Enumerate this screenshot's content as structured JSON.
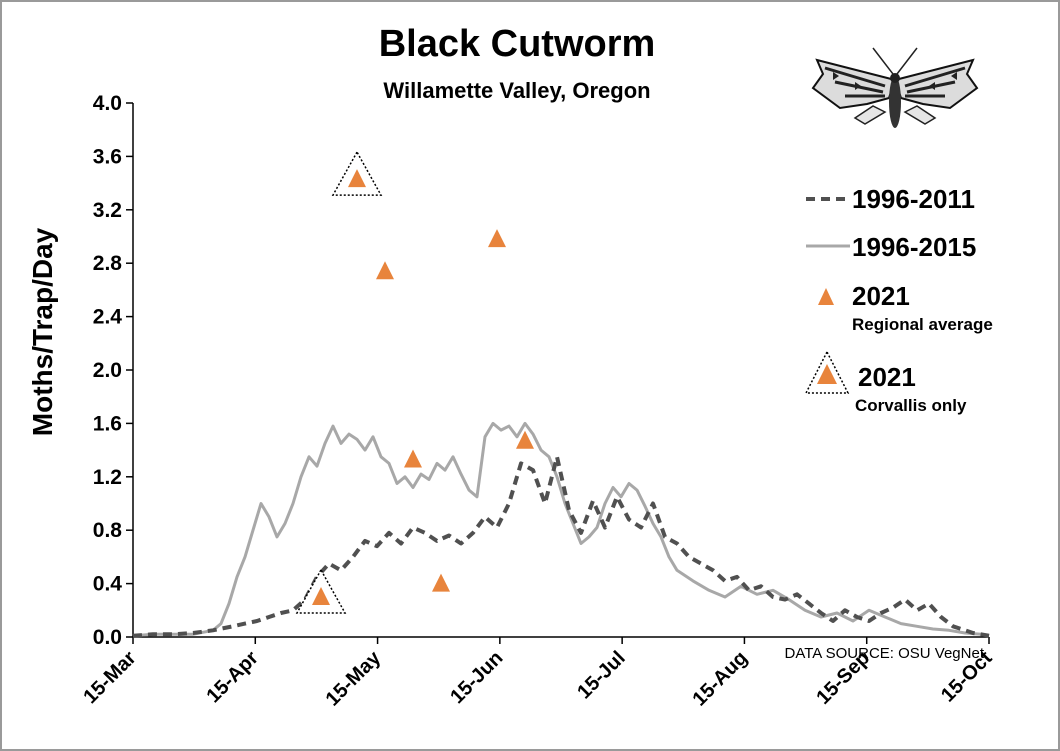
{
  "chart_data": {
    "type": "line",
    "title": "Black Cutworm",
    "subtitle": "Willamette Valley, Oregon",
    "ylabel": "Moths/Trap/Day",
    "xlabel": "",
    "ylim": [
      0,
      4.0
    ],
    "yticks": [
      "0.0",
      "0.4",
      "0.8",
      "1.2",
      "1.6",
      "2.0",
      "2.4",
      "2.8",
      "3.2",
      "3.6",
      "4.0"
    ],
    "xticks": [
      "15-Mar",
      "15-Apr",
      "15-May",
      "15-Jun",
      "15-Jul",
      "15-Aug",
      "15-Sep",
      "15-Oct"
    ],
    "x_unit": "days since 15-Mar",
    "series": [
      {
        "name": "1996-2011",
        "style": "dashed",
        "color": "#505050",
        "x": [
          0,
          5,
          10,
          15,
          20,
          25,
          28,
          31,
          34,
          37,
          40,
          43,
          46,
          49,
          52,
          55,
          58,
          61,
          64,
          67,
          70,
          73,
          76,
          79,
          82,
          85,
          88,
          91,
          94,
          97,
          100,
          103,
          106,
          109,
          112,
          115,
          118,
          121,
          124,
          127,
          130,
          133,
          136,
          139,
          142,
          145,
          148,
          151,
          154,
          157,
          160,
          163,
          166,
          169,
          172,
          175,
          178,
          181,
          184,
          187,
          190,
          193,
          196,
          199,
          202,
          205,
          208,
          210,
          212,
          214
        ],
        "values": [
          0.01,
          0.02,
          0.02,
          0.03,
          0.05,
          0.08,
          0.1,
          0.12,
          0.15,
          0.18,
          0.2,
          0.28,
          0.45,
          0.55,
          0.5,
          0.6,
          0.72,
          0.68,
          0.78,
          0.7,
          0.82,
          0.78,
          0.72,
          0.76,
          0.7,
          0.78,
          0.9,
          0.82,
          1.0,
          1.3,
          1.25,
          1.0,
          1.35,
          0.95,
          0.78,
          1.02,
          0.82,
          1.05,
          0.88,
          0.82,
          1.0,
          0.75,
          0.7,
          0.6,
          0.55,
          0.5,
          0.42,
          0.45,
          0.35,
          0.38,
          0.3,
          0.28,
          0.32,
          0.25,
          0.18,
          0.12,
          0.2,
          0.15,
          0.12,
          0.18,
          0.22,
          0.28,
          0.2,
          0.25,
          0.15,
          0.08,
          0.05,
          0.03,
          0.02,
          0.01
        ]
      },
      {
        "name": "1996-2015",
        "style": "solid",
        "color": "#a8a8a8",
        "x": [
          0,
          5,
          10,
          15,
          20,
          22,
          24,
          26,
          28,
          30,
          32,
          34,
          36,
          38,
          40,
          42,
          44,
          46,
          48,
          50,
          52,
          54,
          56,
          58,
          60,
          62,
          64,
          66,
          68,
          70,
          72,
          74,
          76,
          78,
          80,
          82,
          84,
          86,
          88,
          90,
          92,
          94,
          96,
          98,
          100,
          102,
          104,
          106,
          108,
          110,
          112,
          114,
          116,
          118,
          120,
          122,
          124,
          126,
          128,
          130,
          132,
          134,
          136,
          140,
          144,
          148,
          152,
          156,
          160,
          164,
          168,
          172,
          176,
          180,
          184,
          188,
          192,
          196,
          200,
          204,
          208,
          212,
          214
        ],
        "values": [
          0.01,
          0.02,
          0.02,
          0.02,
          0.05,
          0.1,
          0.25,
          0.45,
          0.6,
          0.8,
          1.0,
          0.9,
          0.75,
          0.85,
          1.0,
          1.2,
          1.35,
          1.28,
          1.45,
          1.58,
          1.45,
          1.52,
          1.48,
          1.4,
          1.5,
          1.35,
          1.3,
          1.15,
          1.2,
          1.12,
          1.22,
          1.18,
          1.3,
          1.25,
          1.35,
          1.22,
          1.1,
          1.05,
          1.5,
          1.6,
          1.55,
          1.58,
          1.5,
          1.6,
          1.52,
          1.4,
          1.35,
          1.2,
          1.0,
          0.85,
          0.7,
          0.75,
          0.82,
          1.0,
          1.12,
          1.05,
          1.15,
          1.1,
          0.98,
          0.85,
          0.75,
          0.6,
          0.5,
          0.42,
          0.35,
          0.3,
          0.38,
          0.32,
          0.35,
          0.28,
          0.2,
          0.15,
          0.18,
          0.12,
          0.2,
          0.15,
          0.1,
          0.08,
          0.06,
          0.05,
          0.03,
          0.02,
          0.01
        ]
      }
    ],
    "points": [
      {
        "name": "2021 Regional average",
        "day": 47,
        "value": 0.3
      },
      {
        "name": "2021 Regional average",
        "day": 63,
        "value": 2.74
      },
      {
        "name": "2021 Regional average",
        "day": 70,
        "value": 1.33
      },
      {
        "name": "2021 Regional average",
        "day": 77,
        "value": 0.4
      },
      {
        "name": "2021 Regional average",
        "day": 91,
        "value": 2.98
      },
      {
        "name": "2021 Regional average",
        "day": 98,
        "value": 1.47
      },
      {
        "name": "2021 Corvallis only",
        "day": 56,
        "value": 3.43
      }
    ],
    "corvallis_boxed": [
      {
        "day": 47,
        "value": 0.3
      },
      {
        "day": 56,
        "value": 3.43
      }
    ],
    "marker_color": "#e8843c",
    "legend": [
      {
        "label": "1996-2011",
        "sub": ""
      },
      {
        "label": "1996-2015",
        "sub": ""
      },
      {
        "label": "2021",
        "sub": "Regional average"
      },
      {
        "label": "2021",
        "sub": "Corvallis only"
      }
    ],
    "legend_position": "right",
    "source": "DATA SOURCE:  OSU VegNet",
    "grid": false
  }
}
